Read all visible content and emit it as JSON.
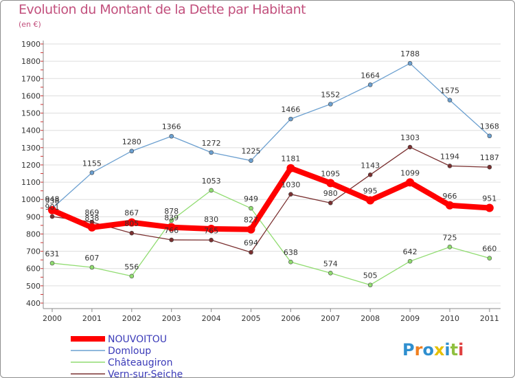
{
  "title": "Evolution du Montant de la Dette par Habitant",
  "subtitle": "(en €)",
  "logo_text": "Proxiti",
  "chart_data": {
    "type": "line",
    "title": "Evolution du Montant de la Dette par Habitant",
    "subtitle": "(en €)",
    "xlabel": "",
    "ylabel": "",
    "ylim": [
      400,
      1900
    ],
    "yticks": [
      400,
      500,
      600,
      700,
      800,
      900,
      1000,
      1100,
      1200,
      1300,
      1400,
      1500,
      1600,
      1700,
      1800,
      1900
    ],
    "x": [
      "2000",
      "2001",
      "2002",
      "2003",
      "2004",
      "2005",
      "2006",
      "2007",
      "2008",
      "2009",
      "2010",
      "2011"
    ],
    "grid": "horizontal",
    "legend_position": "bottom-left",
    "series": [
      {
        "name": "NOUVOITOU",
        "color": "#ff0000",
        "values": [
          938,
          838,
          867,
          839,
          830,
          827,
          1181,
          1095,
          995,
          1099,
          966,
          951
        ]
      },
      {
        "name": "Domloup",
        "color": "#6ca0d0",
        "values": [
          948,
          1155,
          1280,
          1366,
          1272,
          1225,
          1466,
          1552,
          1664,
          1788,
          1575,
          1368
        ]
      },
      {
        "name": "Châteaugiron",
        "color": "#90dc70",
        "values": [
          631,
          607,
          556,
          878,
          1053,
          949,
          638,
          574,
          505,
          642,
          725,
          660
        ]
      },
      {
        "name": "Vern-sur-Seiche",
        "color": "#7a3030",
        "values": [
          901,
          869,
          805,
          766,
          765,
          694,
          1030,
          980,
          1143,
          1303,
          1194,
          1187
        ]
      }
    ]
  }
}
